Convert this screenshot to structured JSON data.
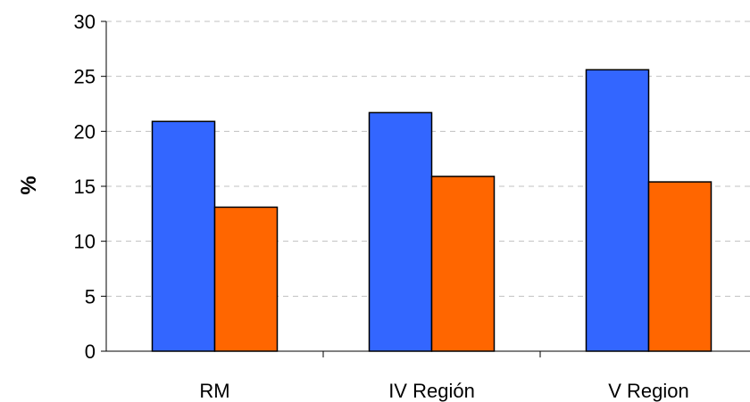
{
  "chart_data": {
    "type": "bar",
    "title": "",
    "xlabel": "",
    "ylabel": "%",
    "ylim": [
      0,
      30
    ],
    "yticks": [
      0,
      5,
      10,
      15,
      20,
      25,
      30
    ],
    "grid": true,
    "legend": "none",
    "categories": [
      "RM",
      "IV Región",
      "V Region"
    ],
    "series": [
      {
        "values": [
          20.9,
          21.7,
          25.6
        ],
        "color": "#3366ff"
      },
      {
        "values": [
          13.1,
          15.9,
          15.4
        ],
        "color": "#ff6600"
      }
    ]
  }
}
